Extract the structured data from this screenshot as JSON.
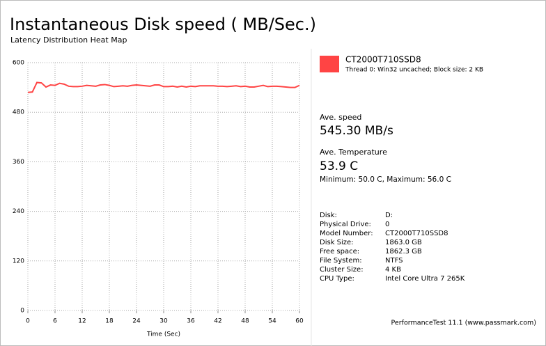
{
  "chart_data": {
    "type": "line",
    "title": "Instantaneous Disk speed ( MB/Sec.)",
    "subtitle": "Latency Distribution Heat Map",
    "x_label": "Time (Sec)",
    "x": [
      0,
      1,
      2,
      3,
      4,
      5,
      6,
      7,
      8,
      9,
      10,
      11,
      12,
      13,
      14,
      15,
      16,
      17,
      18,
      19,
      20,
      21,
      22,
      23,
      24,
      25,
      26,
      27,
      28,
      29,
      30,
      31,
      32,
      33,
      34,
      35,
      36,
      37,
      38,
      39,
      40,
      41,
      42,
      43,
      44,
      45,
      46,
      47,
      48,
      49,
      50,
      51,
      52,
      53,
      54,
      55,
      56,
      57,
      58,
      59,
      60
    ],
    "series": [
      {
        "name": "CT2000T710SSD8",
        "color": "#ff4444",
        "values": [
          528,
          529,
          552,
          551,
          541,
          546,
          545,
          550,
          548,
          543,
          542,
          542,
          543,
          545,
          544,
          543,
          546,
          547,
          545,
          542,
          543,
          544,
          543,
          545,
          546,
          545,
          544,
          543,
          546,
          546,
          542,
          542,
          543,
          541,
          543,
          541,
          543,
          542,
          544,
          544,
          544,
          544,
          543,
          543,
          542,
          543,
          544,
          542,
          543,
          541,
          541,
          543,
          545,
          542,
          543,
          543,
          542,
          541,
          540,
          540,
          545
        ]
      }
    ],
    "legend_detail": "Thread 0: Win32 uncached; Block size: 2 KB",
    "xlim": [
      0,
      60
    ],
    "xticks": [
      0,
      6,
      12,
      18,
      24,
      30,
      36,
      42,
      48,
      54,
      60
    ],
    "ylim": [
      0,
      600
    ],
    "yticks": [
      0,
      120,
      240,
      360,
      480,
      600
    ],
    "grid": true
  },
  "summary": {
    "speed_label": "Ave. speed",
    "speed": "545.30 MB/s",
    "temp_label": "Ave. Temperature",
    "temp": "53.9 C",
    "temp_range": "Minimum: 50.0 C, Maximum: 56.0 C"
  },
  "info": {
    "rows": [
      [
        "Disk:",
        "D:"
      ],
      [
        "Physical Drive:",
        "0"
      ],
      [
        "Model Number:",
        "CT2000T710SSD8"
      ],
      [
        "Disk Size:",
        "1863.0 GB"
      ],
      [
        "Free space:",
        "1862.3 GB"
      ],
      [
        "File System:",
        "NTFS"
      ],
      [
        "Cluster Size:",
        "4 KB"
      ],
      [
        "CPU Type:",
        "Intel Core Ultra 7 265K"
      ]
    ]
  },
  "footer": "PerformanceTest 11.1 (www.passmark.com)"
}
